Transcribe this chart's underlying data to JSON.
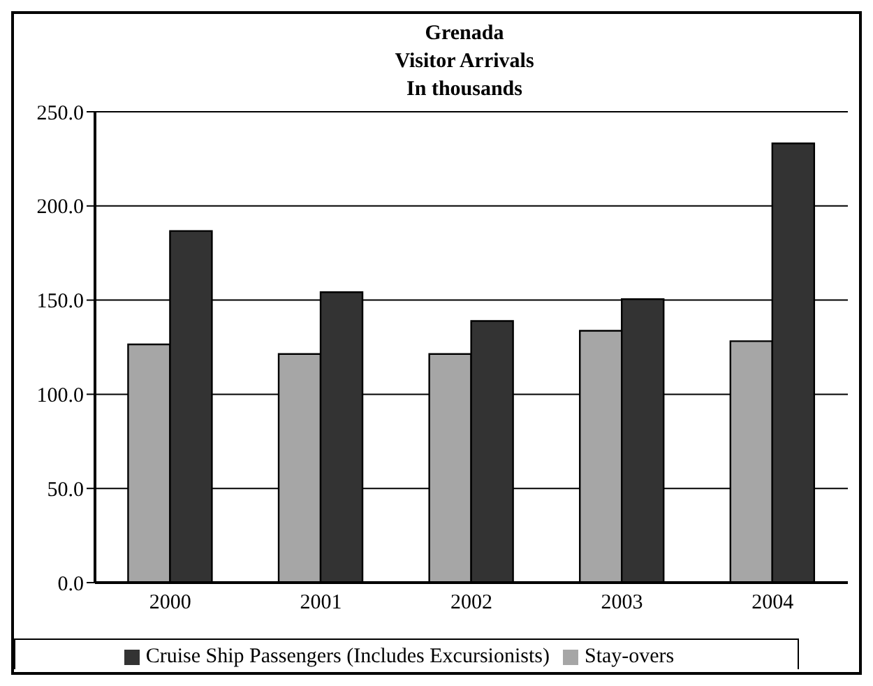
{
  "chart_data": {
    "type": "bar",
    "title": "Grenada\nVisitor Arrivals\nIn thousands",
    "categories": [
      "2000",
      "2001",
      "2002",
      "2003",
      "2004"
    ],
    "series": [
      {
        "name": "Stay-overs",
        "color": "#a6a6a6",
        "values": [
          126.5,
          121.4,
          121.4,
          133.7,
          128.2
        ]
      },
      {
        "name": "Cruise Ship Passengers (Includes Excursionists)",
        "color": "#333333",
        "values": [
          186.7,
          154.2,
          138.9,
          150.5,
          233.2
        ]
      }
    ],
    "ylim": [
      0,
      250
    ],
    "yticks": [
      {
        "value": 0,
        "label": "0.0"
      },
      {
        "value": 50,
        "label": "50.0"
      },
      {
        "value": 100,
        "label": "100.0"
      },
      {
        "value": 150,
        "label": "150.0"
      },
      {
        "value": 200,
        "label": "200.0"
      },
      {
        "value": 250,
        "label": "250.0"
      }
    ],
    "grid": "y",
    "legend": "bottom"
  }
}
